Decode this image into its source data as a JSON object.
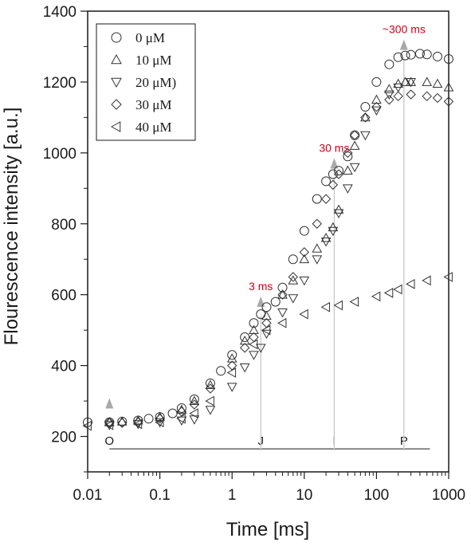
{
  "chart_data": {
    "type": "scatter",
    "xscale": "log",
    "xlim": [
      0.01,
      1000
    ],
    "ylim": [
      100,
      1400
    ],
    "x_ticks": [
      0.01,
      0.1,
      1,
      10,
      100,
      1000
    ],
    "x_tick_labels": [
      "0.01",
      "0.1",
      "1",
      "10",
      "100",
      "1000"
    ],
    "y_ticks": [
      200,
      400,
      600,
      800,
      1000,
      1200,
      1400
    ],
    "y_tick_labels": [
      "200",
      "400",
      "600",
      "800",
      "1000",
      "1200",
      "1400"
    ],
    "xlabel": "Time [ms]",
    "ylabel": "Flourescence intensity [a.u.]",
    "legend_position": "top-left",
    "grid": false,
    "series": [
      {
        "name": "0   μM",
        "marker": "circle",
        "x": [
          0.01,
          0.02,
          0.03,
          0.05,
          0.07,
          0.1,
          0.15,
          0.2,
          0.3,
          0.5,
          0.7,
          1,
          1.5,
          2,
          2.5,
          3,
          4,
          5,
          7,
          10,
          15,
          20,
          25,
          30,
          40,
          50,
          70,
          100,
          150,
          200,
          250,
          300,
          400,
          500,
          700,
          1000
        ],
        "y": [
          240,
          240,
          242,
          245,
          250,
          255,
          265,
          280,
          305,
          350,
          385,
          430,
          480,
          520,
          545,
          565,
          580,
          620,
          700,
          780,
          870,
          920,
          940,
          950,
          990,
          1050,
          1130,
          1200,
          1250,
          1270,
          1275,
          1277,
          1280,
          1278,
          1272,
          1265
        ]
      },
      {
        "name": "10 μM",
        "marker": "triangle-up",
        "x": [
          0.02,
          0.03,
          0.05,
          0.1,
          0.2,
          0.3,
          0.5,
          1,
          1.5,
          2,
          3,
          5,
          7,
          10,
          15,
          20,
          25,
          30,
          40,
          50,
          70,
          100,
          150,
          200,
          250,
          300,
          500,
          700,
          1000
        ],
        "y": [
          240,
          242,
          245,
          255,
          275,
          300,
          345,
          420,
          470,
          500,
          540,
          600,
          640,
          700,
          730,
          760,
          790,
          840,
          950,
          1020,
          1100,
          1150,
          1180,
          1195,
          1200,
          1200,
          1200,
          1195,
          1185
        ]
      },
      {
        "name": "20 μM)",
        "marker": "triangle-down",
        "x": [
          0.02,
          0.05,
          0.1,
          0.2,
          0.3,
          0.5,
          1,
          1.5,
          2,
          2.5,
          3,
          5,
          7,
          10,
          15,
          20,
          25,
          30,
          40,
          50,
          70,
          100,
          150,
          200,
          300
        ],
        "y": [
          232,
          235,
          240,
          245,
          248,
          275,
          340,
          395,
          430,
          450,
          490,
          550,
          590,
          640,
          700,
          750,
          780,
          830,
          900,
          960,
          1050,
          1120,
          1165,
          1185,
          1200
        ]
      },
      {
        "name": "30 μM",
        "marker": "diamond",
        "x": [
          0.02,
          0.03,
          0.05,
          0.1,
          0.2,
          0.3,
          0.5,
          1,
          1.5,
          2,
          3,
          5,
          7,
          10,
          15,
          20,
          25,
          30,
          40,
          50,
          70,
          100,
          150,
          200,
          300,
          500,
          700,
          1000
        ],
        "y": [
          240,
          238,
          240,
          250,
          270,
          290,
          335,
          400,
          450,
          480,
          520,
          600,
          650,
          720,
          800,
          870,
          910,
          940,
          1000,
          1050,
          1100,
          1130,
          1150,
          1160,
          1165,
          1160,
          1155,
          1145
        ]
      },
      {
        "name": "40 μM",
        "marker": "triangle-left",
        "x": [
          0.01,
          0.02,
          0.05,
          0.1,
          0.2,
          0.3,
          0.5,
          1,
          2,
          3,
          5,
          10,
          20,
          30,
          50,
          100,
          150,
          200,
          300,
          500,
          1000
        ],
        "y": [
          230,
          232,
          235,
          240,
          250,
          265,
          300,
          380,
          460,
          500,
          520,
          545,
          565,
          570,
          580,
          595,
          605,
          615,
          630,
          640,
          650
        ]
      }
    ],
    "annotations": [
      {
        "text": "3 ms",
        "x": 2.5,
        "arrow_y": 1000,
        "line_from": 550,
        "line_to": 160
      },
      {
        "text": "30 ms",
        "x": 26,
        "arrow_y": 1000,
        "line_from": 940,
        "line_to": 160
      },
      {
        "text": "~300 ms",
        "x": 240,
        "arrow_y": 1000,
        "line_from": 1275,
        "line_to": 160
      },
      {
        "text": "",
        "x": 0.02,
        "arrow_y": 290
      }
    ],
    "phase_markers": [
      {
        "label": "O",
        "x": 0.02
      },
      {
        "label": "J",
        "x": 2.5
      },
      {
        "label": "I",
        "x": 26
      },
      {
        "label": "P",
        "x": 240
      }
    ],
    "baseline": {
      "y": 165,
      "x_from": 0.02,
      "x_to": 550
    }
  }
}
